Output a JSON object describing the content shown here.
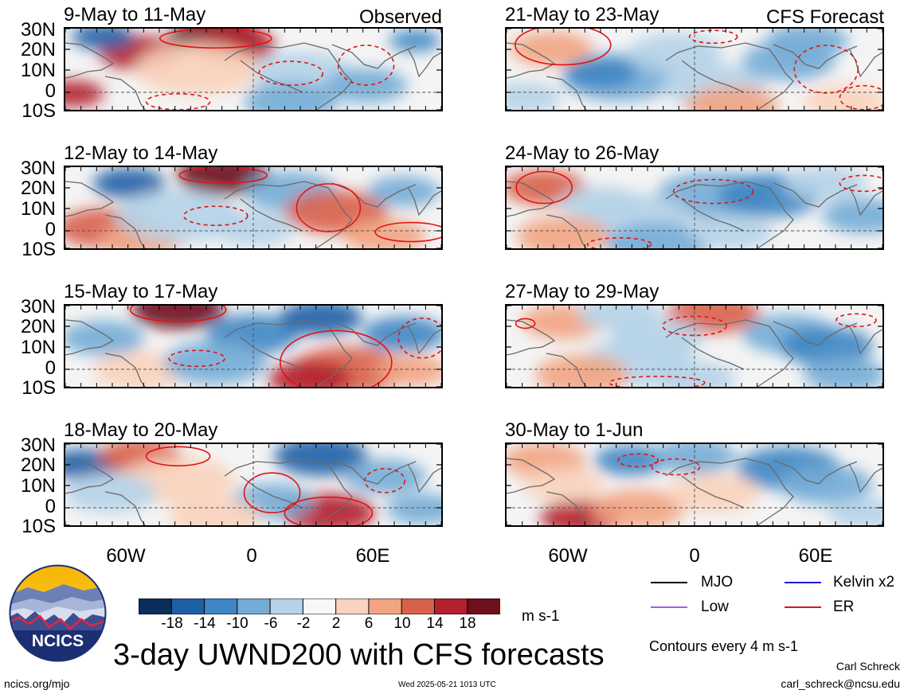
{
  "panels": [
    {
      "title": "9-May to 11-May",
      "tag": "Observed"
    },
    {
      "title": "12-May to 14-May",
      "tag": ""
    },
    {
      "title": "15-May to 17-May",
      "tag": ""
    },
    {
      "title": "18-May to 20-May",
      "tag": ""
    },
    {
      "title": "21-May to 23-May",
      "tag": "CFS Forecast"
    },
    {
      "title": "24-May to 26-May",
      "tag": ""
    },
    {
      "title": "27-May to 29-May",
      "tag": ""
    },
    {
      "title": "30-May to 1-Jun",
      "tag": ""
    }
  ],
  "lat_ticks": [
    "30N",
    "20N",
    "10N",
    "0",
    "10S"
  ],
  "lon_ticks": [
    "60W",
    "0",
    "60E"
  ],
  "colorbar": {
    "labels": [
      "-18",
      "-14",
      "-10",
      "-6",
      "-2",
      "2",
      "6",
      "10",
      "14",
      "18"
    ],
    "colors": [
      "#0a2e5c",
      "#1f5fa6",
      "#3f86c4",
      "#74acd6",
      "#b5d3e8",
      "#f7f7f7",
      "#f9d3bd",
      "#f2a482",
      "#d9614a",
      "#b5202e",
      "#6e0f1c"
    ],
    "unit": "m s-1"
  },
  "legend": {
    "items": [
      {
        "label": "MJO",
        "color": "#000000"
      },
      {
        "label": "Kelvin x2",
        "color": "#1c1cd6"
      },
      {
        "label": "Low",
        "color": "#a45de8"
      },
      {
        "label": "ER",
        "color": "#e01414"
      }
    ],
    "contours_note": "Contours every 4 m s-1"
  },
  "logo": {
    "text": "NCICS"
  },
  "title": "3-day UWND200 with CFS forecasts",
  "footer": {
    "left": "ncics.org/mjo",
    "center": "Wed 2025-05-21 1013 UTC",
    "author": "Carl Schreck",
    "email": "carl_schreck@ncsu.edu"
  }
}
